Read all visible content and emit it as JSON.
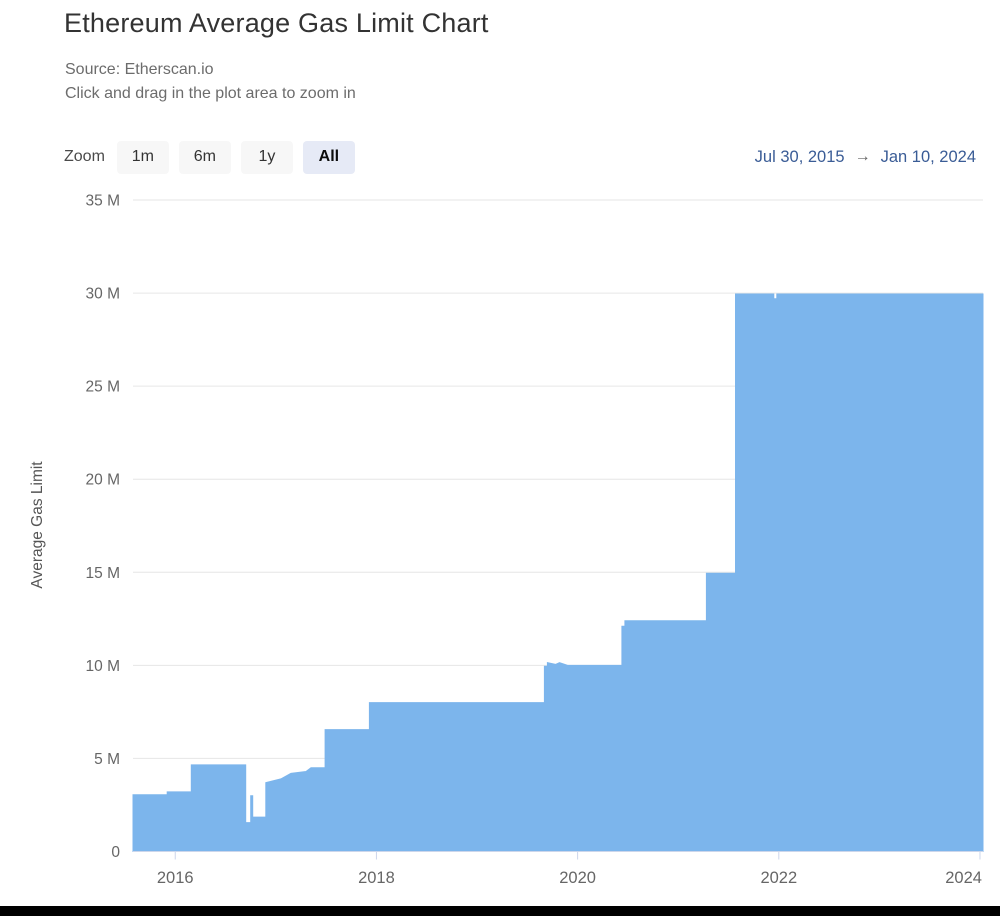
{
  "header": {
    "title": "Ethereum Average Gas Limit Chart",
    "source_line": "Source: Etherscan.io",
    "hint_line": "Click and drag in the plot area to zoom in"
  },
  "range_selector": {
    "zoom_label": "Zoom",
    "buttons": [
      {
        "label": "1m",
        "selected": false
      },
      {
        "label": "6m",
        "selected": false
      },
      {
        "label": "1y",
        "selected": false
      },
      {
        "label": "All",
        "selected": true
      }
    ],
    "date_from": "Jul 30, 2015",
    "arrow": "→",
    "date_to": "Jan 10, 2024"
  },
  "colors": {
    "series_fill": "#7cb5ec",
    "grid": "#e6e6e6",
    "axis_line": "#ccd6eb",
    "tick_text": "#666666",
    "selected_button_bg": "#e6eaf6",
    "button_bg": "#f7f7f7",
    "date_text": "#3a5c96"
  },
  "chart_data": {
    "type": "area",
    "title": "Ethereum Average Gas Limit Chart",
    "subtitle": "Source: Etherscan.io",
    "xlabel": "",
    "ylabel": "Average Gas Limit",
    "x_unit": "decimal_year",
    "y_unit": "million gas units",
    "xlim": [
      2015.58,
      2024.03
    ],
    "ylim": [
      0,
      35
    ],
    "grid": "horizontal",
    "legend": "none",
    "yticks": [
      {
        "v": 0,
        "label": "0"
      },
      {
        "v": 5,
        "label": "5 M"
      },
      {
        "v": 10,
        "label": "10 M"
      },
      {
        "v": 15,
        "label": "15 M"
      },
      {
        "v": 20,
        "label": "20 M"
      },
      {
        "v": 25,
        "label": "25 M"
      },
      {
        "v": 30,
        "label": "30 M"
      },
      {
        "v": 35,
        "label": "35 M"
      }
    ],
    "xticks": [
      {
        "v": 2016,
        "label": "2016"
      },
      {
        "v": 2018,
        "label": "2018"
      },
      {
        "v": 2020,
        "label": "2020"
      },
      {
        "v": 2022,
        "label": "2022"
      },
      {
        "v": 2024,
        "label": "2024"
      }
    ],
    "series": [
      {
        "name": "Average Gas Limit",
        "color": "#7cb5ec",
        "points": [
          [
            2015.58,
            3.05
          ],
          [
            2015.92,
            3.05
          ],
          [
            2015.92,
            3.2
          ],
          [
            2016.16,
            3.2
          ],
          [
            2016.16,
            4.65
          ],
          [
            2016.7,
            4.65
          ],
          [
            2016.7,
            1.55
          ],
          [
            2016.75,
            1.55
          ],
          [
            2016.75,
            3.0
          ],
          [
            2016.77,
            3.0
          ],
          [
            2016.77,
            1.85
          ],
          [
            2016.9,
            1.85
          ],
          [
            2016.9,
            3.7
          ],
          [
            2017.05,
            3.9
          ],
          [
            2017.15,
            4.2
          ],
          [
            2017.3,
            4.3
          ],
          [
            2017.35,
            4.5
          ],
          [
            2017.49,
            4.5
          ],
          [
            2017.49,
            6.55
          ],
          [
            2017.93,
            6.55
          ],
          [
            2017.93,
            8.0
          ],
          [
            2019.67,
            8.0
          ],
          [
            2019.67,
            9.95
          ],
          [
            2019.7,
            9.95
          ],
          [
            2019.7,
            10.15
          ],
          [
            2019.78,
            10.05
          ],
          [
            2019.82,
            10.15
          ],
          [
            2019.9,
            10.0
          ],
          [
            2020.44,
            10.0
          ],
          [
            2020.44,
            12.1
          ],
          [
            2020.47,
            12.1
          ],
          [
            2020.47,
            12.4
          ],
          [
            2021.28,
            12.4
          ],
          [
            2021.28,
            14.95
          ],
          [
            2021.57,
            14.95
          ],
          [
            2021.57,
            29.95
          ],
          [
            2021.95,
            29.95
          ],
          [
            2021.95,
            29.7
          ],
          [
            2021.98,
            29.7
          ],
          [
            2021.98,
            29.95
          ],
          [
            2024.03,
            29.95
          ]
        ]
      }
    ]
  }
}
